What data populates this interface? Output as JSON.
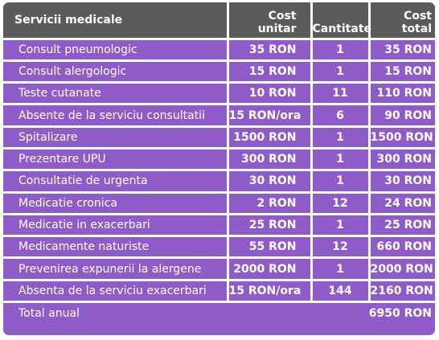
{
  "headers": {
    "service": "Servicii medicale",
    "unit_cost_line1": "Cost",
    "unit_cost_line2": "unitar",
    "quantity": "Cantitate",
    "total_cost_line1": "Cost",
    "total_cost_line2": "total"
  },
  "rows": [
    {
      "service": "Consult pneumologic",
      "unit_cost": "35 RON",
      "quantity": "1",
      "total": "35 RON"
    },
    {
      "service": "Consult alergologic",
      "unit_cost": "15 RON",
      "quantity": "1",
      "total": "15 RON"
    },
    {
      "service": "Teste cutanate",
      "unit_cost": "10 RON",
      "quantity": "11",
      "total": "110 RON"
    },
    {
      "service": "Absente de la serviciu consultatii",
      "unit_cost": "15 RON/ora",
      "quantity": "6",
      "total": "90 RON"
    },
    {
      "service": "Spitalizare",
      "unit_cost": "1500 RON",
      "quantity": "1",
      "total": "1500 RON"
    },
    {
      "service": "Prezentare UPU",
      "unit_cost": "300 RON",
      "quantity": "1",
      "total": "300 RON"
    },
    {
      "service": "Consultatie de urgenta",
      "unit_cost": "30 RON",
      "quantity": "1",
      "total": "30 RON"
    },
    {
      "service": "Medicatie cronica",
      "unit_cost": "2 RON",
      "quantity": "12",
      "total": "24 RON"
    },
    {
      "service": "Medicatie in exacerbari",
      "unit_cost": "25 RON",
      "quantity": "1",
      "total": "25 RON"
    },
    {
      "service": "Medicamente naturiste",
      "unit_cost": "55 RON",
      "quantity": "12",
      "total": "660 RON"
    },
    {
      "service": "Prevenirea expunerii la alergene",
      "unit_cost": "2000 RON",
      "quantity": "1",
      "total": "2000 RON"
    },
    {
      "service": "Absenta de la serviciu exacerbari",
      "unit_cost": "15 RON/ora",
      "quantity": "144",
      "total": "2160 RON"
    }
  ],
  "footer": {
    "label": "Total anual",
    "value": "6950 RON"
  },
  "colors": {
    "header_bg": "#5b5b5b",
    "row_bg": "#8f5bc9",
    "text": "#ffffff",
    "grid": "#ffffff"
  }
}
